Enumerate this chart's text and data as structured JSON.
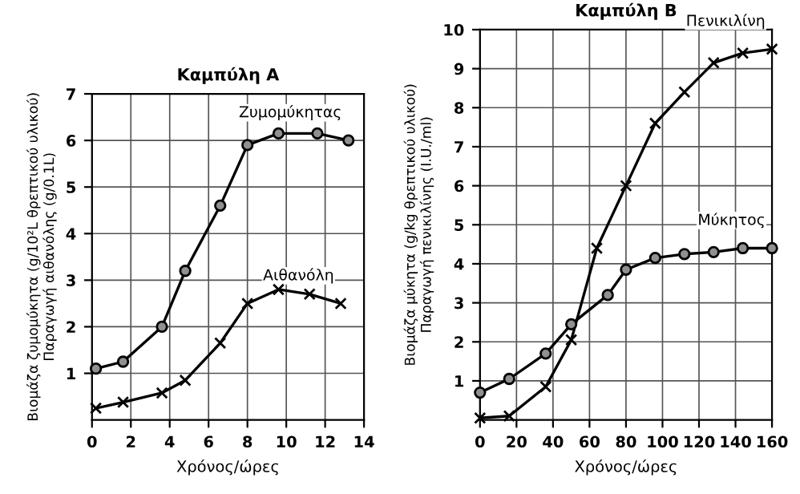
{
  "chart_data": [
    {
      "type": "line",
      "title": "Καμπύλη Α",
      "xlabel": "Χρόνος/ώρες",
      "ylabel": "Βιομάζα ζυμομύκητα (g/10²L θρεπτικού υλικού)\nΠαραγωγή αιθανόλης (g/0.1L)",
      "xlim": [
        0,
        14
      ],
      "ylim": [
        0,
        7
      ],
      "xticks": [
        0,
        2,
        4,
        6,
        8,
        10,
        12,
        14
      ],
      "yticks": [
        1,
        2,
        3,
        4,
        5,
        6,
        7
      ],
      "grid": true,
      "series": [
        {
          "name": "Ζυμομύκητας",
          "color": "#000000",
          "marker": "circle",
          "x": [
            0.2,
            1.6,
            3.6,
            4.8,
            6.6,
            8,
            9.6,
            11.6,
            13.2
          ],
          "values": [
            1.1,
            1.25,
            2.0,
            3.2,
            4.6,
            5.9,
            6.15,
            6.15,
            6.0
          ]
        },
        {
          "name": "Αιθανόλη",
          "color": "#000000",
          "marker": "cross",
          "x": [
            0.2,
            1.6,
            3.6,
            4.8,
            6.6,
            8,
            9.6,
            11.2,
            12.8
          ],
          "values": [
            0.25,
            0.38,
            0.58,
            0.85,
            1.65,
            2.5,
            2.8,
            2.7,
            2.5
          ]
        }
      ]
    },
    {
      "type": "line",
      "title": "Καμπύλη Β",
      "xlabel": "Χρόνος/ώρες",
      "ylabel": "Βιομάζα μύκητα (g/kg θρεπτικού υλικού)\nΠαραγωγή πενικιλίνης (I.U./ml)",
      "xlim": [
        0,
        160
      ],
      "ylim": [
        0,
        10
      ],
      "xticks": [
        0,
        20,
        40,
        60,
        80,
        100,
        120,
        140,
        160
      ],
      "yticks": [
        1,
        2,
        3,
        4,
        5,
        6,
        7,
        8,
        9,
        10
      ],
      "grid": true,
      "series": [
        {
          "name": "Πενικιλίνη",
          "color": "#000000",
          "marker": "cross",
          "x": [
            0,
            16,
            36,
            50,
            64,
            80,
            96,
            112,
            128,
            144,
            160
          ],
          "values": [
            0.05,
            0.1,
            0.85,
            2.05,
            4.4,
            6.0,
            7.6,
            8.4,
            9.15,
            9.4,
            9.5
          ]
        },
        {
          "name": "Μύκητος",
          "color": "#000000",
          "marker": "circle",
          "x": [
            0,
            16,
            36,
            50,
            70,
            80,
            96,
            112,
            128,
            144,
            160
          ],
          "values": [
            0.7,
            1.05,
            1.7,
            2.45,
            3.2,
            3.85,
            4.15,
            4.25,
            4.3,
            4.4,
            4.4
          ]
        }
      ]
    }
  ]
}
